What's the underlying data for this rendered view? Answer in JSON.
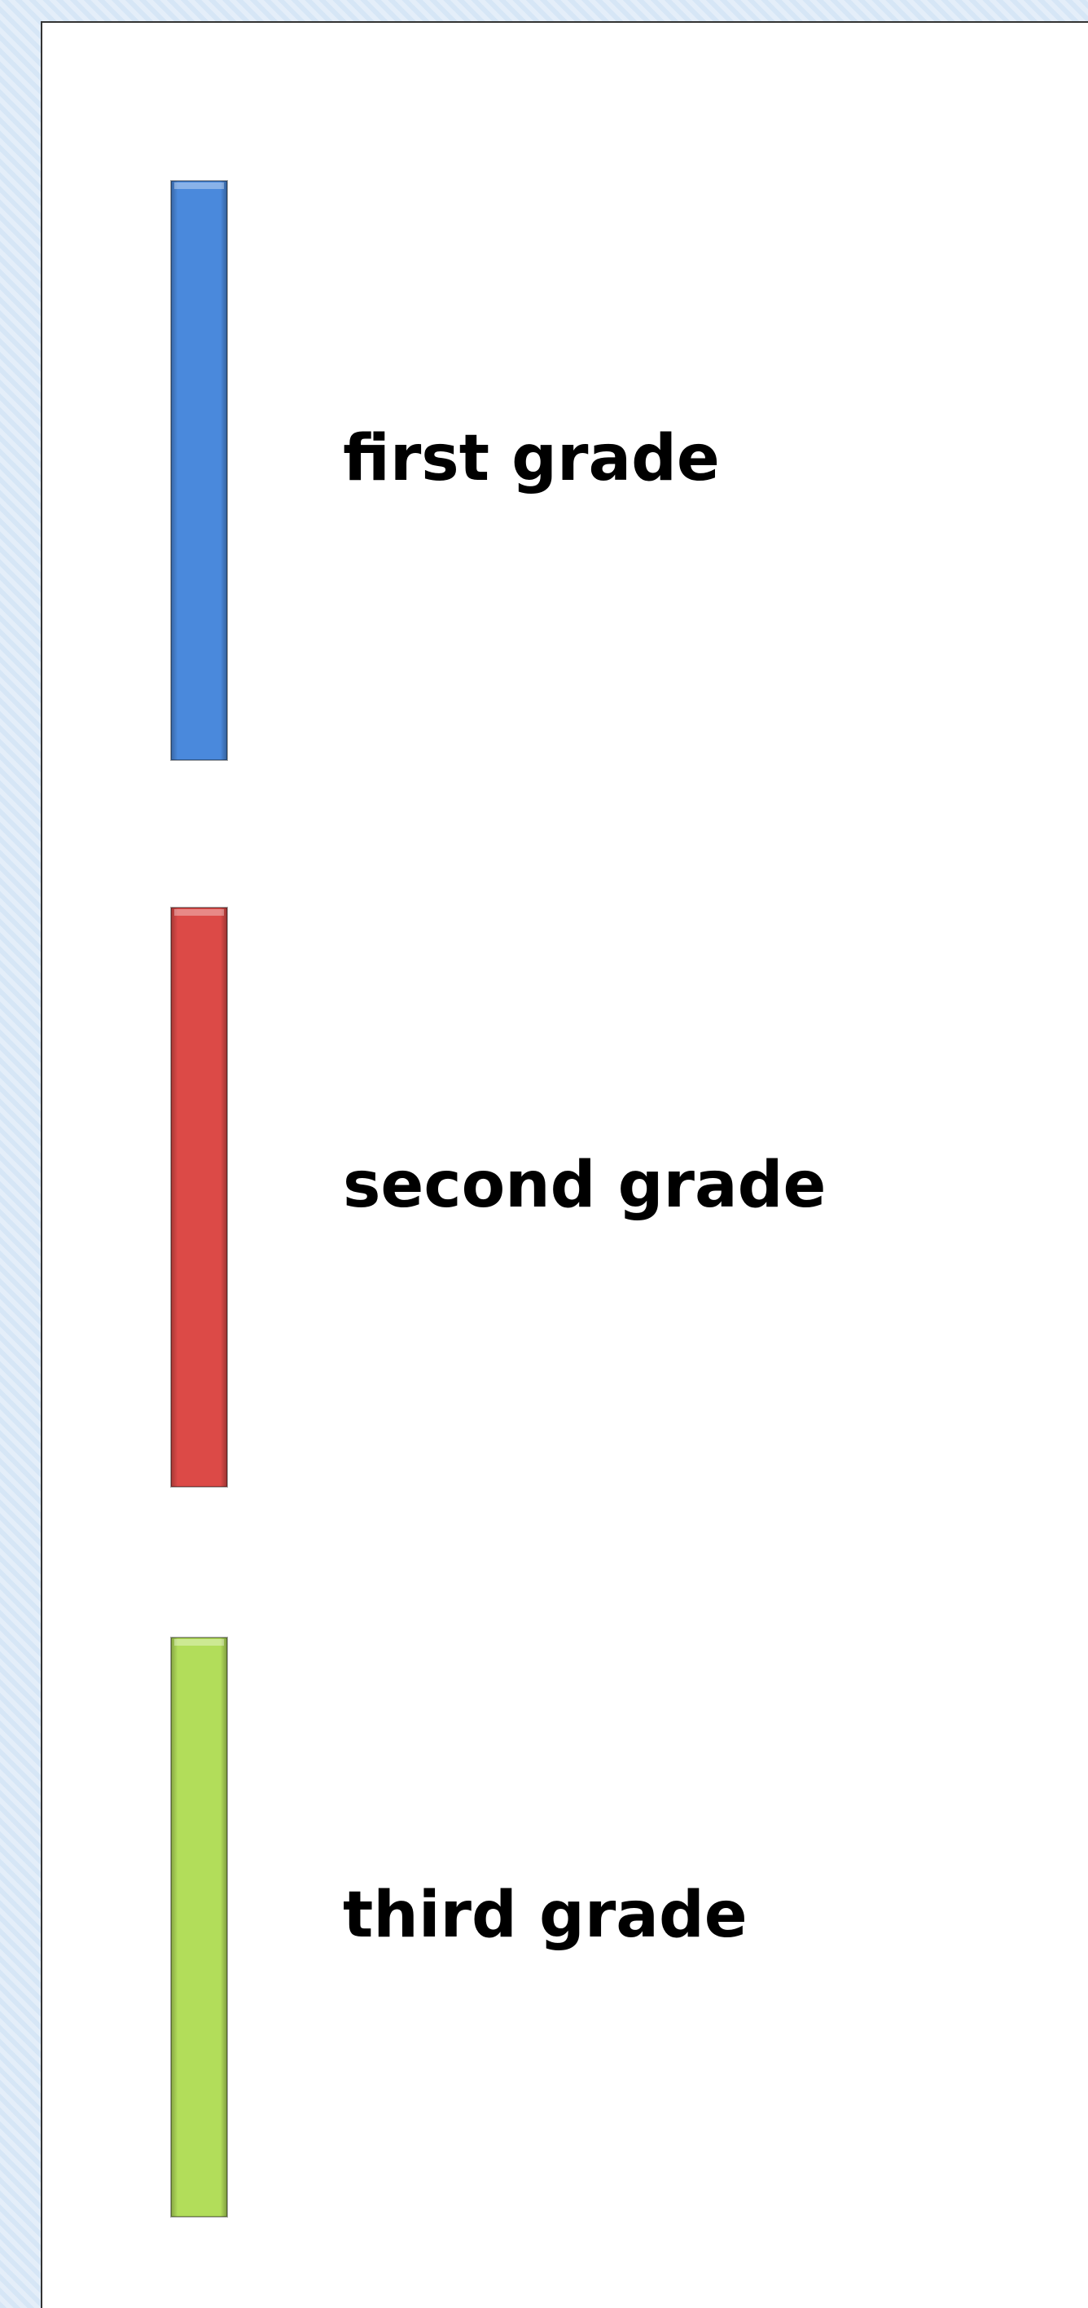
{
  "legend": {
    "items": [
      {
        "label": "first grade",
        "color": "#4a89dc"
      },
      {
        "label": "second grade",
        "color": "#dc4a47"
      },
      {
        "label": "third grade",
        "color": "#b2dd5a"
      }
    ]
  }
}
